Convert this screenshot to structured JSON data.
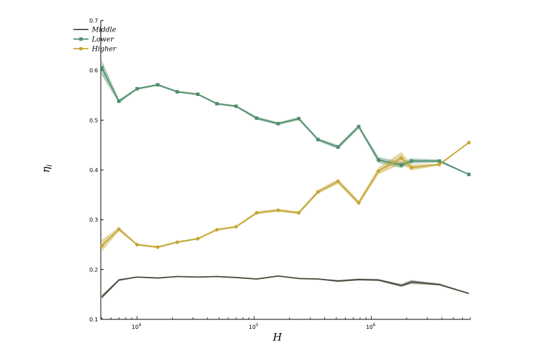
{
  "chart_data": {
    "type": "line",
    "xlabel": "H",
    "ylabel": "η_i",
    "xscale": "log",
    "xlim": [
      4900,
      7000000
    ],
    "ylim": [
      0.1,
      0.7
    ],
    "yticks": [
      0.1,
      0.2,
      0.3,
      0.4,
      0.5,
      0.6,
      0.7
    ],
    "ytick_labels": [
      "0.1",
      "0.2",
      "0.3",
      "0.4",
      "0.5",
      "0.6",
      "0.7"
    ],
    "xticks": [
      10000,
      100000,
      1000000
    ],
    "xtick_labels": [
      {
        "base": "10",
        "exp": "4"
      },
      {
        "base": "10",
        "exp": "5"
      },
      {
        "base": "10",
        "exp": "6"
      }
    ],
    "grid": false,
    "legend_position": "top-left",
    "series": [
      {
        "name": "Middle",
        "color": "#4a4538",
        "marker": "none",
        "x": [
          5000,
          7000,
          10000,
          15000,
          22000,
          33000,
          48000,
          70000,
          105000,
          160000,
          240000,
          350000,
          520000,
          780000,
          1150000,
          1800000,
          2200000,
          3800000,
          6800000
        ],
        "y": [
          0.145,
          0.179,
          0.185,
          0.183,
          0.186,
          0.185,
          0.186,
          0.184,
          0.181,
          0.187,
          0.182,
          0.181,
          0.177,
          0.18,
          0.179,
          0.168,
          0.175,
          0.17,
          0.152
        ],
        "band": [
          0.004,
          0.002,
          0.001,
          0.001,
          0.001,
          0.001,
          0.001,
          0.001,
          0.001,
          0.001,
          0.001,
          0.001,
          0.002,
          0.002,
          0.002,
          0.003,
          0.004,
          0.002,
          0.001
        ]
      },
      {
        "name": "Lower",
        "color": "#4f8f6c",
        "marker": "square",
        "x": [
          5000,
          7000,
          10000,
          15000,
          22000,
          33000,
          48000,
          70000,
          105000,
          160000,
          240000,
          350000,
          520000,
          780000,
          1150000,
          1800000,
          2200000,
          3800000,
          6800000
        ],
        "y": [
          0.605,
          0.538,
          0.563,
          0.571,
          0.557,
          0.552,
          0.533,
          0.528,
          0.504,
          0.493,
          0.503,
          0.461,
          0.446,
          0.487,
          0.42,
          0.41,
          0.418,
          0.418,
          0.391
        ],
        "band": [
          0.015,
          0.004,
          0.002,
          0.002,
          0.002,
          0.002,
          0.002,
          0.002,
          0.003,
          0.003,
          0.003,
          0.003,
          0.004,
          0.004,
          0.006,
          0.006,
          0.005,
          0.003,
          0.001
        ]
      },
      {
        "name": "Higher",
        "color": "#c4a634",
        "marker": "circle",
        "x": [
          5000,
          7000,
          10000,
          15000,
          22000,
          33000,
          48000,
          70000,
          105000,
          160000,
          240000,
          350000,
          520000,
          780000,
          1150000,
          1800000,
          2200000,
          3800000,
          6800000
        ],
        "y": [
          0.248,
          0.281,
          0.25,
          0.245,
          0.255,
          0.262,
          0.28,
          0.286,
          0.314,
          0.319,
          0.314,
          0.356,
          0.377,
          0.334,
          0.398,
          0.424,
          0.405,
          0.411,
          0.455
        ],
        "band": [
          0.012,
          0.004,
          0.002,
          0.002,
          0.002,
          0.002,
          0.002,
          0.002,
          0.003,
          0.003,
          0.003,
          0.004,
          0.005,
          0.005,
          0.007,
          0.012,
          0.006,
          0.002,
          0.001
        ]
      }
    ]
  }
}
